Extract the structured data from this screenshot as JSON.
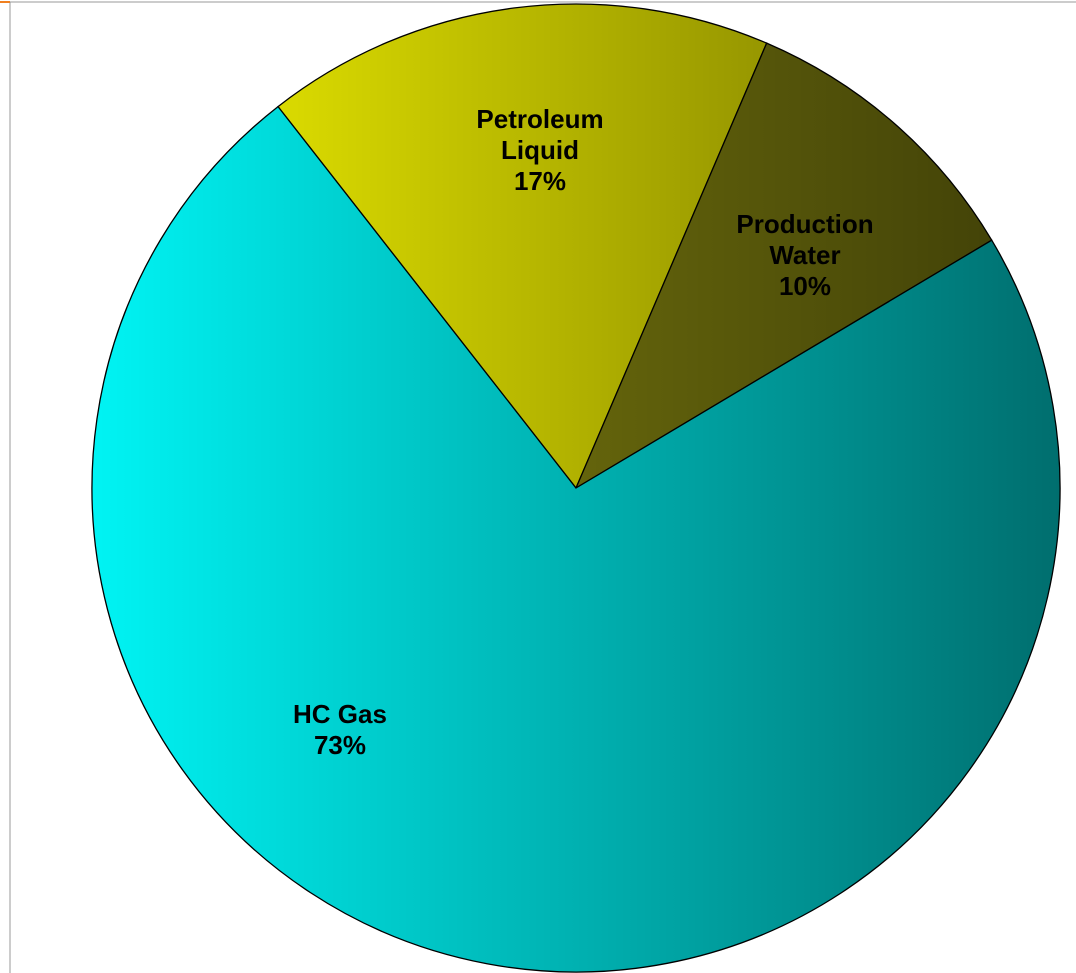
{
  "chart_data": {
    "type": "pie",
    "categories": [
      "Petroleum Liquid",
      "Production Water",
      "HC Gas"
    ],
    "values": [
      17,
      10,
      73
    ],
    "value_labels": [
      "17%",
      "10%",
      "73%"
    ],
    "colors": [
      "#f4f400",
      "#8a8a10",
      "#00f4f4"
    ]
  }
}
